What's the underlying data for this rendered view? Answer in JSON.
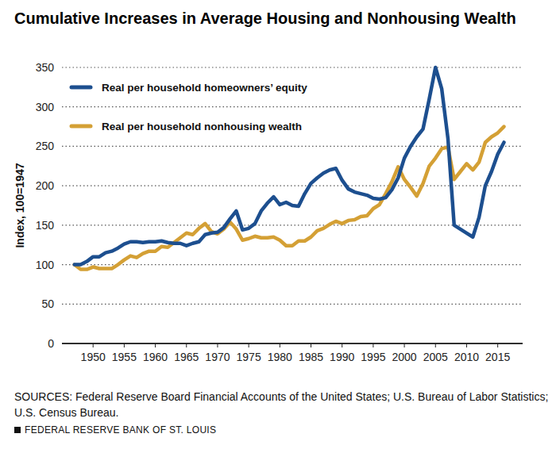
{
  "chart_data": {
    "type": "line",
    "title": "Cumulative Increases in Average Housing and Nonhousing Wealth",
    "y_label": "Index, 100=1947",
    "sources": [
      "SOURCES: Federal Reserve Board Financial Accounts of the United States; U.S. Bureau of Labor Statistics;",
      "U.S. Census Bureau."
    ],
    "footer": "FEDERAL RESERVE BANK OF ST. LOUIS",
    "x": [
      1947,
      1948,
      1949,
      1950,
      1951,
      1952,
      1953,
      1954,
      1955,
      1956,
      1957,
      1958,
      1959,
      1960,
      1961,
      1962,
      1963,
      1964,
      1965,
      1966,
      1967,
      1968,
      1969,
      1970,
      1971,
      1972,
      1973,
      1974,
      1975,
      1976,
      1977,
      1978,
      1979,
      1980,
      1981,
      1982,
      1983,
      1984,
      1985,
      1986,
      1987,
      1988,
      1989,
      1990,
      1991,
      1992,
      1993,
      1994,
      1995,
      1996,
      1997,
      1998,
      1999,
      2000,
      2001,
      2002,
      2003,
      2004,
      2005,
      2006,
      2007,
      2008,
      2009,
      2010,
      2011,
      2012,
      2013,
      2014,
      2015,
      2016
    ],
    "series": [
      {
        "name": "Real per household homeowners’ equity",
        "color": "#1d4f8f",
        "values": [
          100,
          100,
          104,
          110,
          110,
          115,
          117,
          121,
          126,
          129,
          129,
          128,
          129,
          129,
          130,
          128,
          127,
          127,
          124,
          127,
          129,
          138,
          140,
          141,
          147,
          158,
          168,
          144,
          146,
          152,
          168,
          178,
          186,
          176,
          179,
          175,
          174,
          190,
          203,
          210,
          216,
          220,
          222,
          207,
          196,
          192,
          190,
          188,
          184,
          183,
          185,
          195,
          210,
          235,
          250,
          262,
          272,
          310,
          350,
          323,
          260,
          150,
          145,
          140,
          135,
          160,
          200,
          218,
          240,
          255
        ]
      },
      {
        "name": "Real per household nonhousing wealth",
        "color": "#d4a035",
        "values": [
          100,
          94,
          94,
          97,
          95,
          95,
          95,
          100,
          106,
          111,
          109,
          114,
          117,
          117,
          123,
          122,
          128,
          134,
          140,
          138,
          146,
          152,
          142,
          139,
          145,
          154,
          145,
          131,
          133,
          136,
          134,
          134,
          135,
          131,
          124,
          124,
          130,
          130,
          135,
          143,
          146,
          151,
          155,
          152,
          156,
          157,
          161,
          162,
          171,
          176,
          190,
          205,
          224,
          208,
          198,
          187,
          203,
          225,
          235,
          247,
          249,
          208,
          218,
          228,
          220,
          230,
          255,
          262,
          267,
          275
        ]
      }
    ],
    "xlim": [
      1945,
      2019
    ],
    "xticks": [
      1950,
      1955,
      1960,
      1965,
      1970,
      1975,
      1980,
      1985,
      1990,
      1995,
      2000,
      2005,
      2010,
      2015
    ],
    "ylim": [
      0,
      350
    ],
    "yticks": [
      0,
      50,
      100,
      150,
      200,
      250,
      300,
      350
    ],
    "grid": true,
    "legend": "top-left"
  }
}
